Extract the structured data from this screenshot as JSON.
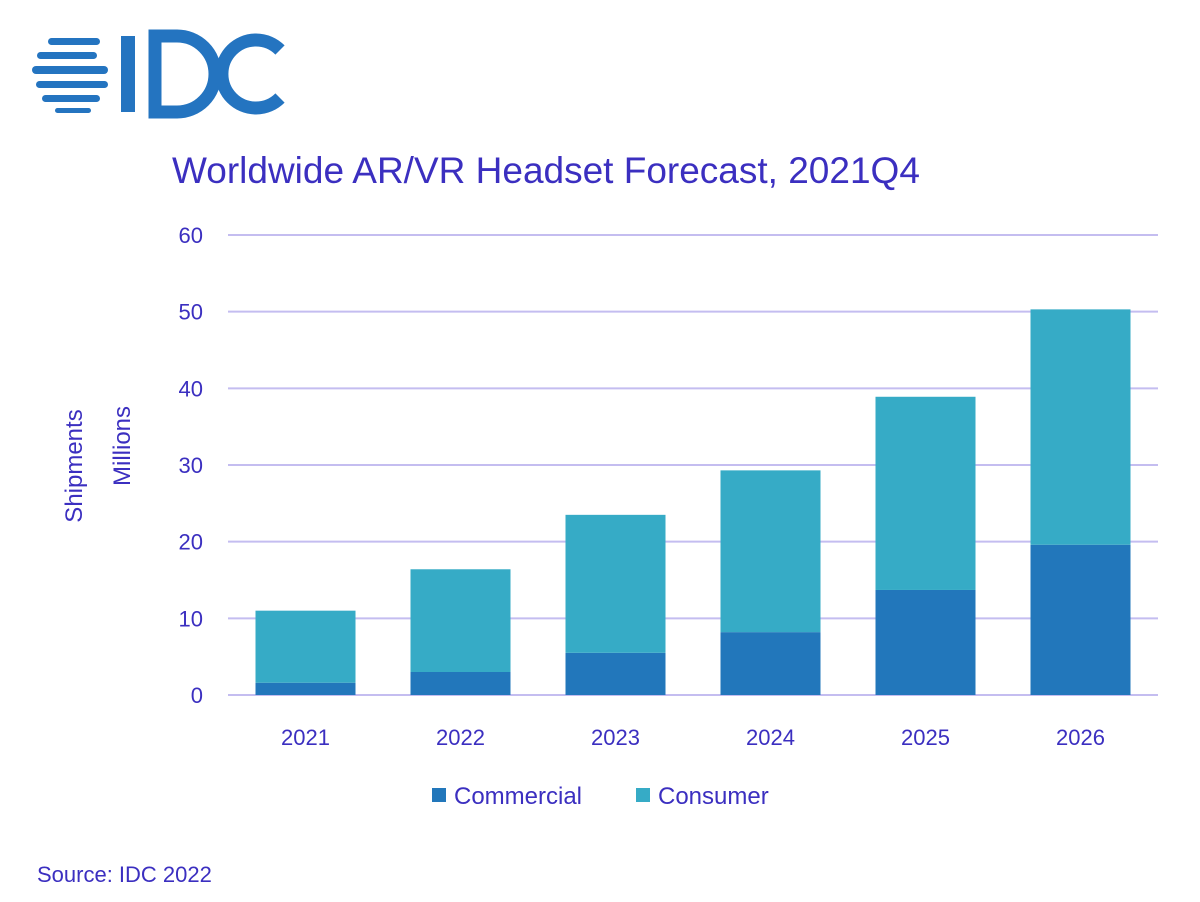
{
  "logo": {
    "text": "IDC",
    "color": "#2474c0"
  },
  "chart_data": {
    "type": "bar",
    "stacked": true,
    "title": "Worldwide AR/VR Headset Forecast, 2021Q4",
    "xlabel": "",
    "ylabel": [
      "Shipments",
      "Millions"
    ],
    "ylim": [
      0,
      60
    ],
    "yticks": [
      0,
      10,
      20,
      30,
      40,
      50,
      60
    ],
    "grid": true,
    "categories": [
      "2021",
      "2022",
      "2023",
      "2024",
      "2025",
      "2026"
    ],
    "series": [
      {
        "name": "Commercial",
        "color": "#2277bb",
        "values": [
          1.6,
          3.0,
          5.5,
          8.2,
          13.7,
          19.6
        ]
      },
      {
        "name": "Consumer",
        "color": "#36abc6",
        "values": [
          9.4,
          13.4,
          18.0,
          21.1,
          25.2,
          30.7
        ]
      }
    ],
    "legend": "bottom-center",
    "source": "Source: IDC 2022"
  }
}
